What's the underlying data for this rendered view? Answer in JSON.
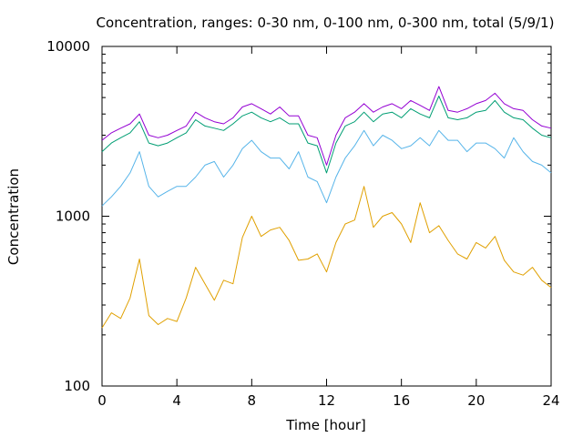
{
  "chart_data": {
    "type": "line",
    "title": "Concentration, ranges: 0-30 nm, 0-100 nm, 0-300 nm, total (5/9/1)",
    "xlabel": "Time [hour]",
    "ylabel": "Concentration",
    "xlim": [
      0,
      24
    ],
    "ylim": [
      100,
      10000
    ],
    "yscale": "log",
    "grid": false,
    "legend": "none",
    "x_ticks": [
      0,
      4,
      8,
      12,
      16,
      20,
      24
    ],
    "x_tick_labels": [
      "0",
      "4",
      "8",
      "12",
      "16",
      "20",
      "24"
    ],
    "y_ticks": [
      100,
      1000,
      10000
    ],
    "y_tick_labels": [
      "100",
      "1000",
      "10000"
    ],
    "series": [
      {
        "color": "#e0a000",
        "x": [
          0,
          0.5,
          1,
          1.5,
          2,
          2.5,
          3,
          3.5,
          4,
          4.5,
          5,
          5.5,
          6,
          6.5,
          7,
          7.5,
          8,
          8.5,
          9,
          9.5,
          10,
          10.5,
          11,
          11.5,
          12,
          12.5,
          13,
          13.5,
          14,
          14.5,
          15,
          15.5,
          16,
          16.5,
          17,
          17.5,
          18,
          18.5,
          19,
          19.5,
          20,
          20.5,
          21,
          21.5,
          22,
          22.5,
          23,
          23.5,
          24
        ],
        "y": [
          220,
          270,
          250,
          330,
          560,
          260,
          230,
          250,
          240,
          330,
          500,
          400,
          320,
          420,
          400,
          750,
          1000,
          760,
          830,
          860,
          720,
          550,
          560,
          600,
          470,
          700,
          900,
          950,
          1500,
          860,
          1000,
          1050,
          900,
          700,
          1200,
          800,
          880,
          720,
          600,
          560,
          700,
          650,
          760,
          550,
          470,
          450,
          500,
          420,
          380
        ]
      },
      {
        "color": "#56b4e9",
        "x": [
          0,
          0.5,
          1,
          1.5,
          2,
          2.5,
          3,
          3.5,
          4,
          4.5,
          5,
          5.5,
          6,
          6.5,
          7,
          7.5,
          8,
          8.5,
          9,
          9.5,
          10,
          10.5,
          11,
          11.5,
          12,
          12.5,
          13,
          13.5,
          14,
          14.5,
          15,
          15.5,
          16,
          16.5,
          17,
          17.5,
          18,
          18.5,
          19,
          19.5,
          20,
          20.5,
          21,
          21.5,
          22,
          22.5,
          23,
          23.5,
          24
        ],
        "y": [
          1150,
          1300,
          1500,
          1800,
          2400,
          1500,
          1300,
          1400,
          1500,
          1500,
          1700,
          2000,
          2100,
          1700,
          2000,
          2500,
          2800,
          2400,
          2200,
          2200,
          1900,
          2400,
          1700,
          1600,
          1200,
          1700,
          2200,
          2600,
          3200,
          2600,
          3000,
          2800,
          2500,
          2600,
          2900,
          2600,
          3200,
          2800,
          2800,
          2400,
          2700,
          2700,
          2500,
          2200,
          2900,
          2400,
          2100,
          2000,
          1800
        ]
      },
      {
        "color": "#009e73",
        "x": [
          0,
          0.5,
          1,
          1.5,
          2,
          2.5,
          3,
          3.5,
          4,
          4.5,
          5,
          5.5,
          6,
          6.5,
          7,
          7.5,
          8,
          8.5,
          9,
          9.5,
          10,
          10.5,
          11,
          11.5,
          12,
          12.5,
          13,
          13.5,
          14,
          14.5,
          15,
          15.5,
          16,
          16.5,
          17,
          17.5,
          18,
          18.5,
          19,
          19.5,
          20,
          20.5,
          21,
          21.5,
          22,
          22.5,
          23,
          23.5,
          24
        ],
        "y": [
          2400,
          2700,
          2900,
          3100,
          3600,
          2700,
          2600,
          2700,
          2900,
          3100,
          3700,
          3400,
          3300,
          3200,
          3500,
          3900,
          4100,
          3800,
          3600,
          3800,
          3500,
          3500,
          2700,
          2600,
          1800,
          2700,
          3400,
          3600,
          4100,
          3600,
          4000,
          4100,
          3800,
          4300,
          4000,
          3800,
          5100,
          3800,
          3700,
          3800,
          4100,
          4200,
          4800,
          4100,
          3800,
          3700,
          3300,
          3000,
          2900
        ]
      },
      {
        "color": "#9400d3",
        "x": [
          0,
          0.5,
          1,
          1.5,
          2,
          2.5,
          3,
          3.5,
          4,
          4.5,
          5,
          5.5,
          6,
          6.5,
          7,
          7.5,
          8,
          8.5,
          9,
          9.5,
          10,
          10.5,
          11,
          11.5,
          12,
          12.5,
          13,
          13.5,
          14,
          14.5,
          15,
          15.5,
          16,
          16.5,
          17,
          17.5,
          18,
          18.5,
          19,
          19.5,
          20,
          20.5,
          21,
          21.5,
          22,
          22.5,
          23,
          23.5,
          24
        ],
        "y": [
          2800,
          3100,
          3300,
          3500,
          4000,
          3000,
          2900,
          3000,
          3200,
          3400,
          4100,
          3800,
          3600,
          3500,
          3800,
          4400,
          4600,
          4300,
          4000,
          4400,
          3900,
          3900,
          3000,
          2900,
          2000,
          3000,
          3800,
          4100,
          4600,
          4100,
          4400,
          4600,
          4300,
          4800,
          4500,
          4200,
          5800,
          4200,
          4100,
          4300,
          4600,
          4800,
          5300,
          4600,
          4300,
          4200,
          3700,
          3400,
          3300
        ]
      }
    ]
  }
}
